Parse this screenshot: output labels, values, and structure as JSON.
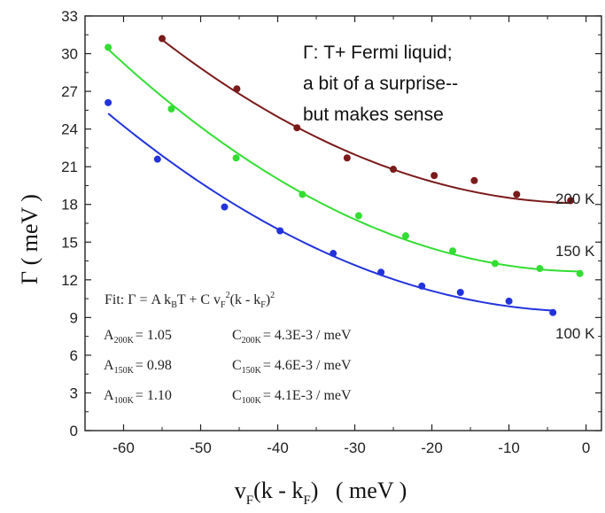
{
  "chart_data": {
    "type": "scatter",
    "title": "",
    "xlabel": {
      "main": "v",
      "sub1": "F",
      "mid": "(k - k",
      "sub2": "F",
      "end": ")   ( meV )"
    },
    "ylabel": "Γ  ( meV )",
    "xlim": [
      -65,
      2
    ],
    "ylim": [
      0,
      33
    ],
    "xticks": [
      -60,
      -50,
      -40,
      -30,
      -20,
      -10,
      0
    ],
    "yticks": [
      0,
      3,
      6,
      9,
      12,
      15,
      18,
      21,
      24,
      27,
      30,
      33
    ],
    "grid": false,
    "series": [
      {
        "name": "200 K",
        "color": "#7b1a1a",
        "points": [
          [
            -55,
            31.2
          ],
          [
            -45.3,
            27.2
          ],
          [
            -37.5,
            24.1
          ],
          [
            -31,
            21.7
          ],
          [
            -25,
            20.8
          ],
          [
            -19.7,
            20.3
          ],
          [
            -14.5,
            19.9
          ],
          [
            -9,
            18.8
          ],
          [
            -2,
            18.3
          ]
        ],
        "fit": {
          "a": 1.05,
          "c": 0.0043,
          "t": 200
        }
      },
      {
        "name": "150 K",
        "color": "#33dd33",
        "points": [
          [
            -62,
            30.5
          ],
          [
            -53.8,
            25.6
          ],
          [
            -45.4,
            21.7
          ],
          [
            -36.8,
            18.8
          ],
          [
            -29.5,
            17.1
          ],
          [
            -23.4,
            15.5
          ],
          [
            -17.3,
            14.3
          ],
          [
            -11.8,
            13.3
          ],
          [
            -6,
            12.9
          ],
          [
            -0.8,
            12.5
          ]
        ],
        "fit": {
          "a": 0.98,
          "c": 0.0046,
          "t": 150
        }
      },
      {
        "name": "100 K",
        "color": "#2233dd",
        "points": [
          [
            -62,
            26.1
          ],
          [
            -55.6,
            21.6
          ],
          [
            -46.9,
            17.8
          ],
          [
            -39.7,
            15.9
          ],
          [
            -32.8,
            14.1
          ],
          [
            -26.6,
            12.6
          ],
          [
            -21.3,
            11.5
          ],
          [
            -16.3,
            11
          ],
          [
            -10,
            10.3
          ],
          [
            -4.3,
            9.4
          ]
        ],
        "fit": {
          "a": 1.1,
          "c": 0.0041,
          "t": 100
        }
      }
    ],
    "annotation_lines": [
      "Γ:  T+ Fermi liquid;",
      "a bit of a surprise--",
      "but makes sense"
    ],
    "fit_box": {
      "formula": {
        "prefix": "Fit: Γ = A k",
        "sub_b": "B",
        "mid1": "T + C v",
        "sub_f1": "F",
        "sup_2a": "2",
        "mid2": "(k - k",
        "sub_f2": "F",
        "mid3": ")",
        "sup_2b": "2"
      },
      "rows": [
        {
          "a_sym": "A",
          "a_sub": "200K",
          "a_val": "= 1.05",
          "c_sym": "C",
          "c_sub": "200K",
          "c_val": "= 4.3E-3 / meV"
        },
        {
          "a_sym": "A",
          "a_sub": "150K",
          "a_val": "= 0.98",
          "c_sym": "C",
          "c_sub": "150K",
          "c_val": "= 4.6E-3 / meV"
        },
        {
          "a_sym": "A",
          "a_sub": "100K",
          "a_val": "= 1.10",
          "c_sym": "C",
          "c_sub": "100K",
          "c_val": "= 4.1E-3 / meV"
        }
      ]
    }
  }
}
